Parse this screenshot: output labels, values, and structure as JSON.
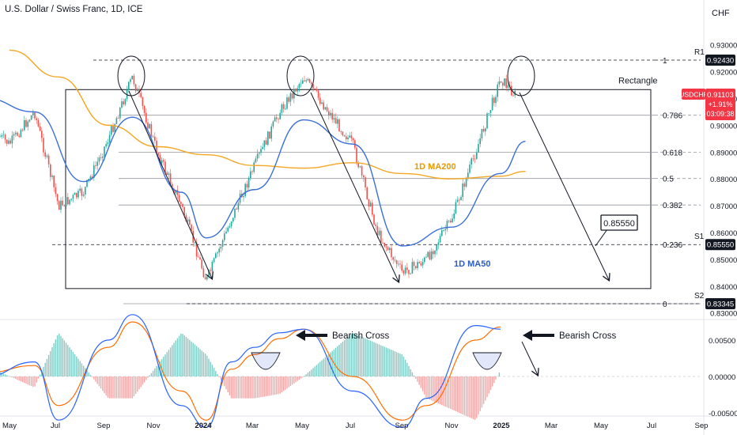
{
  "header": {
    "title": "U.S. Dollar / Swiss Franc, 1D, ICE",
    "currency": "CHF"
  },
  "price_tag": {
    "symbol": "USDCHF",
    "price": "0.91103",
    "change": "+1.91%",
    "countdown": "03:09:38",
    "value": 0.91103
  },
  "levels": {
    "r1": {
      "label": "R1",
      "value": 0.9243,
      "text": "0.92430"
    },
    "s1": {
      "label": "S1",
      "value": 0.8555,
      "text": "0.85550"
    },
    "s2": {
      "label": "S2",
      "value": 0.83345,
      "text": "0.83345"
    }
  },
  "annotations": {
    "rectangle": "Rectangle",
    "ma200": "1D MA200",
    "ma50": "1D MA50",
    "callout": "0.85550",
    "bearish_cross_1": "Bearish Cross",
    "bearish_cross_2": "Bearish Cross"
  },
  "colors": {
    "up": "#26a69a",
    "down": "#ef5350",
    "ma200": "#f5a623",
    "ma50": "#3a6fd8",
    "macd": "#2962ff",
    "signal": "#ff6d00",
    "price_tag": "#f23645",
    "level_tag": "#131722"
  },
  "chart_data": [
    {
      "type": "line",
      "title": "U.S. Dollar / Swiss Franc, 1D, ICE",
      "y_ticks": [
        "0.93000",
        "0.92000",
        "0.91000",
        "0.90000",
        "0.89000",
        "0.88000",
        "0.87000",
        "0.86000",
        "0.85000",
        "0.84000",
        "0.83000"
      ],
      "x_ticks": [
        "May",
        "Jul",
        "Sep",
        "Nov",
        "2024",
        "Mar",
        "May",
        "Jul",
        "Sep",
        "Nov",
        "2025",
        "Mar",
        "May",
        "Jul",
        "Sep"
      ],
      "ylim": [
        0.8265,
        0.9365
      ],
      "grid": false,
      "fib_levels": [
        {
          "label": "1",
          "value": 0.9243
        },
        {
          "label": "0.786",
          "value": 0.90375
        },
        {
          "label": "0.618",
          "value": 0.8899
        },
        {
          "label": "0.5",
          "value": 0.88014
        },
        {
          "label": "0.382",
          "value": 0.87026
        },
        {
          "label": "0.236",
          "value": 0.8555
        },
        {
          "label": "0",
          "value": 0.83345
        }
      ],
      "rectangle_range": {
        "top": 0.9133,
        "bottom": 0.8391
      },
      "price_path": [
        {
          "date": "2023-04",
          "value": 0.9
        },
        {
          "date": "2023-05",
          "value": 0.893
        },
        {
          "date": "2023-06",
          "value": 0.905
        },
        {
          "date": "2023-07",
          "value": 0.87
        },
        {
          "date": "2023-08",
          "value": 0.875
        },
        {
          "date": "2023-09",
          "value": 0.895
        },
        {
          "date": "2023-10",
          "value": 0.918
        },
        {
          "date": "2023-11",
          "value": 0.89
        },
        {
          "date": "2023-12",
          "value": 0.87
        },
        {
          "date": "2024-01",
          "value": 0.842
        },
        {
          "date": "2024-02",
          "value": 0.865
        },
        {
          "date": "2024-03",
          "value": 0.885
        },
        {
          "date": "2024-04",
          "value": 0.905
        },
        {
          "date": "2024-05",
          "value": 0.918
        },
        {
          "date": "2024-06",
          "value": 0.905
        },
        {
          "date": "2024-07",
          "value": 0.893
        },
        {
          "date": "2024-08",
          "value": 0.86
        },
        {
          "date": "2024-09",
          "value": 0.845
        },
        {
          "date": "2024-10",
          "value": 0.85
        },
        {
          "date": "2024-11",
          "value": 0.865
        },
        {
          "date": "2024-12",
          "value": 0.89
        },
        {
          "date": "2025-01",
          "value": 0.9175
        },
        {
          "date": "2025-01-20",
          "value": 0.911
        }
      ],
      "ma200": [
        {
          "date": "2023-05",
          "value": 0.928
        },
        {
          "date": "2023-07",
          "value": 0.918
        },
        {
          "date": "2023-09",
          "value": 0.9
        },
        {
          "date": "2023-11",
          "value": 0.892
        },
        {
          "date": "2024-01",
          "value": 0.889
        },
        {
          "date": "2024-03",
          "value": 0.885
        },
        {
          "date": "2024-05",
          "value": 0.884
        },
        {
          "date": "2024-07",
          "value": 0.886
        },
        {
          "date": "2024-09",
          "value": 0.882
        },
        {
          "date": "2024-11",
          "value": 0.88
        },
        {
          "date": "2025-01",
          "value": 0.881
        },
        {
          "date": "2025-02",
          "value": 0.8828
        }
      ],
      "ma50": [
        {
          "date": "2023-04",
          "value": 0.91
        },
        {
          "date": "2023-06",
          "value": 0.905
        },
        {
          "date": "2023-08",
          "value": 0.879
        },
        {
          "date": "2023-10",
          "value": 0.903
        },
        {
          "date": "2023-12",
          "value": 0.875
        },
        {
          "date": "2024-01",
          "value": 0.858
        },
        {
          "date": "2024-03",
          "value": 0.876
        },
        {
          "date": "2024-05",
          "value": 0.902
        },
        {
          "date": "2024-07",
          "value": 0.893
        },
        {
          "date": "2024-09",
          "value": 0.855
        },
        {
          "date": "2024-11",
          "value": 0.862
        },
        {
          "date": "2025-01",
          "value": 0.882
        },
        {
          "date": "2025-02",
          "value": 0.894
        }
      ]
    },
    {
      "type": "line",
      "title": "",
      "y_ticks": [
        "0.00500",
        "0.00000",
        "-0.00500"
      ],
      "ylim": [
        -0.0075,
        0.0095
      ],
      "macd": [
        {
          "date": "2023-04",
          "value": 0.0
        },
        {
          "date": "2023-06",
          "value": 0.002
        },
        {
          "date": "2023-07",
          "value": -0.006
        },
        {
          "date": "2023-09",
          "value": 0.005
        },
        {
          "date": "2023-10",
          "value": 0.0085
        },
        {
          "date": "2023-12",
          "value": -0.004
        },
        {
          "date": "2024-01",
          "value": -0.007
        },
        {
          "date": "2024-02",
          "value": 0.002
        },
        {
          "date": "2024-03",
          "value": 0.004
        },
        {
          "date": "2024-04",
          "value": 0.006
        },
        {
          "date": "2024-05",
          "value": 0.0065
        },
        {
          "date": "2024-07",
          "value": -0.002
        },
        {
          "date": "2024-09",
          "value": -0.007
        },
        {
          "date": "2024-10",
          "value": -0.003
        },
        {
          "date": "2024-12",
          "value": 0.007
        },
        {
          "date": "2025-01",
          "value": 0.0065
        }
      ],
      "signal": [
        {
          "date": "2023-04",
          "value": 0.0005
        },
        {
          "date": "2023-06",
          "value": 0.0015
        },
        {
          "date": "2023-07",
          "value": -0.004
        },
        {
          "date": "2023-09",
          "value": 0.004
        },
        {
          "date": "2023-10",
          "value": 0.0075
        },
        {
          "date": "2023-12",
          "value": -0.002
        },
        {
          "date": "2024-01",
          "value": -0.006
        },
        {
          "date": "2024-02",
          "value": 0.001
        },
        {
          "date": "2024-03",
          "value": 0.003
        },
        {
          "date": "2024-04",
          "value": 0.0052
        },
        {
          "date": "2024-05",
          "value": 0.0065
        },
        {
          "date": "2024-07",
          "value": 0.0
        },
        {
          "date": "2024-09",
          "value": -0.006
        },
        {
          "date": "2024-10",
          "value": -0.004
        },
        {
          "date": "2024-12",
          "value": 0.005
        },
        {
          "date": "2025-01",
          "value": 0.0068
        }
      ]
    }
  ]
}
